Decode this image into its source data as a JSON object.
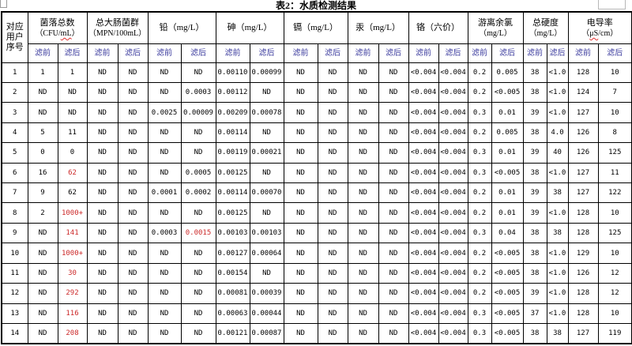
{
  "title": "表2：水质检测结果",
  "colors": {
    "alert_red": "#cc2a2a",
    "subheader_blue": "#3c3c9e"
  },
  "table": {
    "corner_lines": [
      "对应",
      "用户",
      "序号"
    ],
    "filter_labels": {
      "before": "滤前",
      "after": "滤后"
    },
    "groups": [
      {
        "name": "colony-count",
        "line1": "菌落总数",
        "line2": [
          {
            "t": "（CFU/"
          },
          {
            "t": "mL",
            "sq": true
          },
          {
            "t": "）"
          }
        ]
      },
      {
        "name": "total-coliform",
        "line1": "总大肠菌群",
        "line2": [
          {
            "t": "（MPN/100mL）"
          }
        ]
      },
      {
        "name": "lead",
        "line1": "铅（mg/L）"
      },
      {
        "name": "arsenic",
        "line1": "砷（mg/L）"
      },
      {
        "name": "cadmium",
        "line1": "镉（mg/L）"
      },
      {
        "name": "mercury",
        "line1": "汞（mg/L）"
      },
      {
        "name": "chromium-vi",
        "line1": "铬（六价）"
      },
      {
        "name": "free-chlorine",
        "line1": "游离余氯",
        "line2": [
          {
            "t": "（mg/L）"
          }
        ]
      },
      {
        "name": "total-hardness",
        "line1": "总硬度",
        "line2": [
          {
            "t": "（mg/L）"
          }
        ]
      },
      {
        "name": "conductivity",
        "line1": "电导率",
        "line2": [
          {
            "t": "（"
          },
          {
            "t": "μS",
            "sq": true
          },
          {
            "t": "/cm）"
          }
        ]
      }
    ],
    "rows": [
      {
        "no": "1",
        "values": [
          "1",
          "1",
          "ND",
          "ND",
          "ND",
          "ND",
          "0.00110",
          "0.00099",
          "ND",
          "ND",
          "ND",
          "ND",
          "<0.004",
          "<0.004",
          "0.2",
          "0.005",
          "38",
          "<1.0",
          "128",
          "10"
        ],
        "red": []
      },
      {
        "no": "2",
        "values": [
          "ND",
          "ND",
          "ND",
          "ND",
          "ND",
          "0.0003",
          "0.00112",
          "ND",
          "ND",
          "ND",
          "ND",
          "ND",
          "<0.004",
          "<0.004",
          "0.2",
          "<0.005",
          "38",
          "<1.0",
          "124",
          "7"
        ],
        "red": []
      },
      {
        "no": "3",
        "values": [
          "ND",
          "ND",
          "ND",
          "ND",
          "0.0025",
          "0.00009",
          "0.00209",
          "0.00078",
          "ND",
          "ND",
          "ND",
          "ND",
          "<0.004",
          "<0.004",
          "0.3",
          "0.01",
          "39",
          "<1.0",
          "127",
          "10"
        ],
        "red": []
      },
      {
        "no": "4",
        "values": [
          "5",
          "11",
          "ND",
          "ND",
          "ND",
          "ND",
          "0.00114",
          "ND",
          "ND",
          "ND",
          "ND",
          "ND",
          "<0.004",
          "<0.004",
          "0.2",
          "0.005",
          "38",
          "4.0",
          "126",
          "8"
        ],
        "red": []
      },
      {
        "no": "5",
        "values": [
          "0",
          "0",
          "ND",
          "ND",
          "ND",
          "ND",
          "0.00119",
          "0.00021",
          "ND",
          "ND",
          "ND",
          "ND",
          "<0.004",
          "<0.004",
          "0.3",
          "0.01",
          "39",
          "40",
          "126",
          "125"
        ],
        "red": []
      },
      {
        "no": "6",
        "values": [
          "16",
          "62",
          "ND",
          "ND",
          "ND",
          "0.0005",
          "0.00125",
          "ND",
          "ND",
          "ND",
          "ND",
          "ND",
          "<0.004",
          "<0.004",
          "0.3",
          "<0.005",
          "38",
          "<1.0",
          "127",
          "11"
        ],
        "red": [
          1
        ]
      },
      {
        "no": "7",
        "values": [
          "9",
          "62",
          "ND",
          "ND",
          "0.0001",
          "0.0002",
          "0.00114",
          "0.00070",
          "ND",
          "ND",
          "ND",
          "ND",
          "<0.004",
          "<0.004",
          "0.2",
          "0.01",
          "39",
          "38",
          "127",
          "122"
        ],
        "red": []
      },
      {
        "no": "8",
        "values": [
          "2",
          "1000+",
          "ND",
          "ND",
          "ND",
          "ND",
          "0.00125",
          "ND",
          "ND",
          "ND",
          "ND",
          "ND",
          "<0.004",
          "<0.004",
          "0.2",
          "0.01",
          "39",
          "<1.0",
          "128",
          "10"
        ],
        "red": [
          1
        ]
      },
      {
        "no": "9",
        "values": [
          "ND",
          "141",
          "ND",
          "ND",
          "0.0003",
          "0.0015",
          "0.00103",
          "0.00103",
          "ND",
          "ND",
          "ND",
          "ND",
          "<0.004",
          "<0.004",
          "0.3",
          "0.04",
          "38",
          "38",
          "128",
          "125"
        ],
        "red": [
          1,
          5
        ]
      },
      {
        "no": "10",
        "values": [
          "ND",
          "1000+",
          "ND",
          "ND",
          "ND",
          "ND",
          "0.00127",
          "0.00064",
          "ND",
          "ND",
          "ND",
          "ND",
          "<0.004",
          "<0.004",
          "0.2",
          "<0.005",
          "38",
          "<1.0",
          "129",
          "10"
        ],
        "red": [
          1
        ]
      },
      {
        "no": "11",
        "values": [
          "ND",
          "30",
          "ND",
          "ND",
          "ND",
          "ND",
          "0.00154",
          "ND",
          "ND",
          "ND",
          "ND",
          "ND",
          "<0.004",
          "<0.004",
          "0.2",
          "<0.005",
          "38",
          "<1.0",
          "126",
          "12"
        ],
        "red": [
          1
        ]
      },
      {
        "no": "12",
        "values": [
          "ND",
          "292",
          "ND",
          "ND",
          "ND",
          "ND",
          "0.00081",
          "0.00039",
          "ND",
          "ND",
          "ND",
          "ND",
          "<0.004",
          "<0.004",
          "0.2",
          "<0.005",
          "39",
          "<1.0",
          "128",
          "12"
        ],
        "red": [
          1
        ]
      },
      {
        "no": "13",
        "values": [
          "ND",
          "116",
          "ND",
          "ND",
          "ND",
          "ND",
          "0.00063",
          "0.00044",
          "ND",
          "ND",
          "ND",
          "ND",
          "<0.004",
          "<0.004",
          "0.3",
          "<0.005",
          "37",
          "<1.0",
          "128",
          "10"
        ],
        "red": [
          1
        ]
      },
      {
        "no": "14",
        "values": [
          "ND",
          "208",
          "ND",
          "ND",
          "ND",
          "ND",
          "0.00121",
          "0.00087",
          "ND",
          "ND",
          "ND",
          "ND",
          "<0.004",
          "<0.004",
          "0.3",
          "<0.005",
          "38",
          "38",
          "127",
          "119"
        ],
        "red": [
          1
        ]
      }
    ]
  }
}
